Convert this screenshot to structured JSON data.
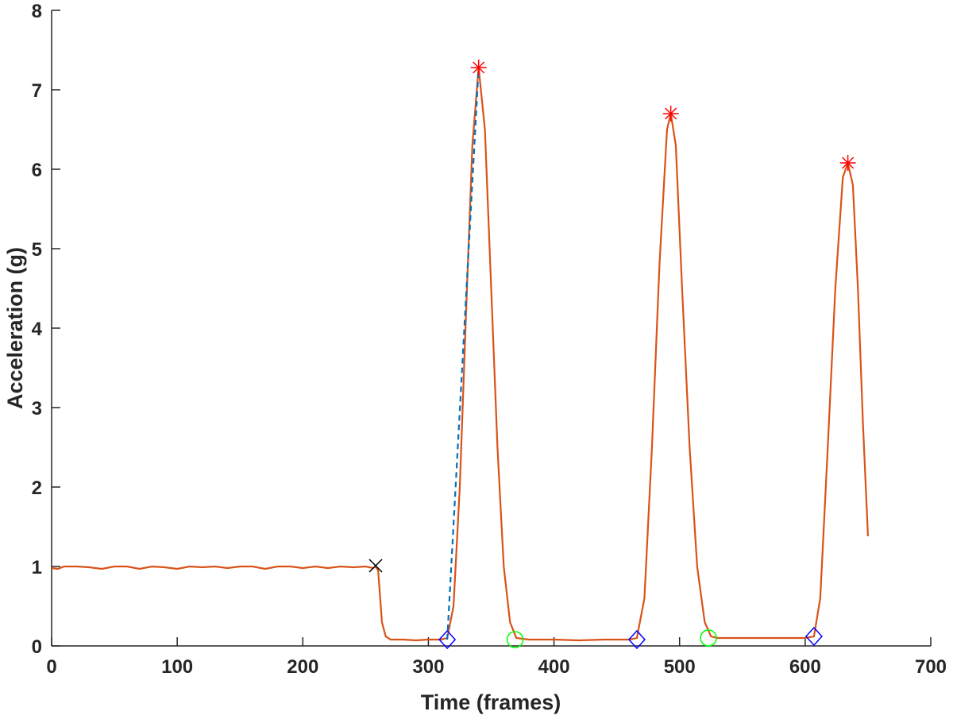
{
  "chart_data": {
    "type": "line",
    "xlabel": "Time (frames)",
    "ylabel": "Acceleration (g)",
    "xlim": [
      0,
      700
    ],
    "xticks": [
      0,
      100,
      200,
      300,
      400,
      500,
      600,
      700
    ],
    "ylim": [
      0,
      8
    ],
    "yticks": [
      0,
      1,
      2,
      3,
      4,
      5,
      6,
      7,
      8
    ],
    "grid": false,
    "series": [
      {
        "color": "#d95319",
        "line": "solid",
        "marker": "none",
        "x": [
          0,
          5,
          10,
          20,
          30,
          40,
          50,
          60,
          70,
          80,
          90,
          100,
          110,
          120,
          130,
          140,
          150,
          160,
          170,
          180,
          190,
          200,
          210,
          220,
          230,
          240,
          250,
          256,
          258,
          260,
          263,
          266,
          270,
          280,
          290,
          300,
          310,
          315,
          320,
          325,
          330,
          335,
          340,
          345,
          350,
          355,
          360,
          365,
          370,
          380,
          400,
          420,
          440,
          460,
          466,
          472,
          478,
          484,
          490,
          493,
          497,
          502,
          508,
          514,
          520,
          525,
          530,
          550,
          570,
          590,
          600,
          607,
          612,
          618,
          624,
          630,
          634,
          638,
          642,
          646,
          650
        ],
        "values": [
          0.98,
          0.97,
          1.0,
          1.0,
          0.99,
          0.97,
          1.0,
          1.0,
          0.97,
          1.0,
          0.99,
          0.97,
          1.0,
          0.99,
          1.0,
          0.98,
          1.0,
          1.0,
          0.97,
          1.0,
          1.0,
          0.98,
          1.0,
          0.98,
          1.0,
          0.99,
          1.0,
          0.98,
          1.0,
          0.95,
          0.3,
          0.12,
          0.08,
          0.08,
          0.07,
          0.08,
          0.08,
          0.1,
          0.5,
          2.0,
          4.2,
          6.3,
          7.28,
          6.5,
          4.5,
          2.5,
          1.0,
          0.3,
          0.1,
          0.08,
          0.08,
          0.07,
          0.08,
          0.08,
          0.1,
          0.6,
          2.5,
          4.8,
          6.5,
          6.7,
          6.3,
          4.5,
          2.5,
          1.0,
          0.3,
          0.12,
          0.1,
          0.1,
          0.1,
          0.1,
          0.1,
          0.12,
          0.6,
          2.5,
          4.5,
          5.9,
          6.08,
          5.8,
          4.5,
          2.8,
          1.38
        ]
      },
      {
        "color": "#0072bd",
        "line": "dashed",
        "marker": "none",
        "x": [
          315,
          340
        ],
        "values": [
          0.08,
          7.28
        ]
      },
      {
        "color": "#000000",
        "line": "none",
        "marker": "x",
        "x": [
          258
        ],
        "values": [
          1.01
        ]
      },
      {
        "color": "#ff0000",
        "line": "none",
        "marker": "asterisk",
        "x": [
          340,
          493,
          634
        ],
        "values": [
          7.28,
          6.7,
          6.08
        ]
      },
      {
        "color": "#0000ff",
        "line": "none",
        "marker": "diamond",
        "x": [
          315,
          466,
          607
        ],
        "values": [
          0.08,
          0.08,
          0.12
        ]
      },
      {
        "color": "#00ff00",
        "line": "none",
        "marker": "circle",
        "x": [
          369,
          523
        ],
        "values": [
          0.08,
          0.1
        ]
      }
    ]
  }
}
